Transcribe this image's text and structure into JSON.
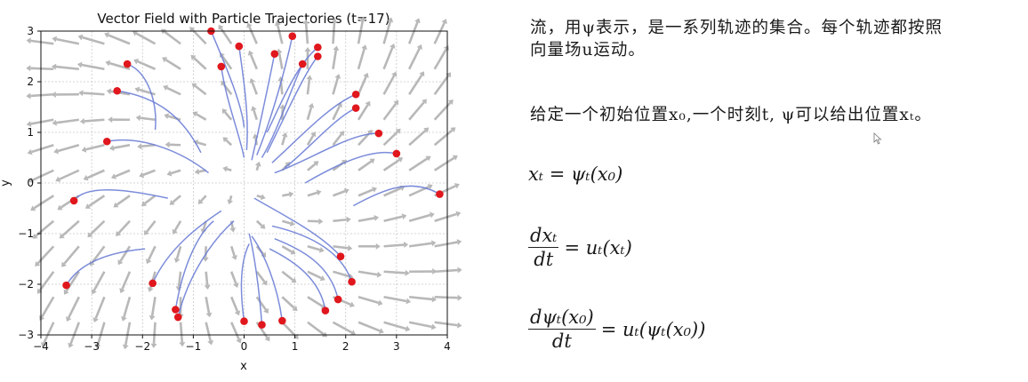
{
  "chart_data": {
    "type": "scatter",
    "title": "Vector Field with Particle Trajectories (t=17)",
    "xlabel": "x",
    "ylabel": "y",
    "xlim": [
      -4,
      4
    ],
    "ylim": [
      -3,
      3
    ],
    "xticks": [
      "−4",
      "−3",
      "−2",
      "−1",
      "0",
      "1",
      "2",
      "3",
      "4"
    ],
    "yticks": [
      "−3",
      "−2",
      "−1",
      "0",
      "1",
      "2",
      "3"
    ],
    "grid": true,
    "particles": [
      {
        "x": -2.3,
        "y": 2.35,
        "trail": [
          [
            -2.3,
            2.35
          ],
          [
            -1.9,
            2.2
          ],
          [
            -1.7,
            1.6
          ],
          [
            -1.75,
            1.05
          ]
        ]
      },
      {
        "x": -2.5,
        "y": 1.82,
        "trail": [
          [
            -2.5,
            1.82
          ],
          [
            -1.7,
            1.7
          ],
          [
            -1.2,
            1.3
          ],
          [
            -0.85,
            0.6
          ]
        ]
      },
      {
        "x": -2.7,
        "y": 0.82,
        "trail": [
          [
            -2.7,
            0.82
          ],
          [
            -2.0,
            0.95
          ],
          [
            -1.2,
            0.6
          ],
          [
            -0.7,
            0.2
          ]
        ]
      },
      {
        "x": -3.35,
        "y": -0.35,
        "trail": [
          [
            -3.35,
            -0.35
          ],
          [
            -3.1,
            0.0
          ],
          [
            -2.2,
            -0.15
          ],
          [
            -1.5,
            -0.3
          ]
        ]
      },
      {
        "x": -3.5,
        "y": -2.02,
        "trail": [
          [
            -3.5,
            -2.02
          ],
          [
            -3.2,
            -1.5
          ],
          [
            -2.5,
            -1.35
          ],
          [
            -1.95,
            -1.3
          ]
        ]
      },
      {
        "x": -1.8,
        "y": -1.98,
        "trail": [
          [
            -1.8,
            -1.98
          ],
          [
            -1.5,
            -1.3
          ],
          [
            -0.9,
            -0.85
          ],
          [
            -0.45,
            -0.55
          ]
        ]
      },
      {
        "x": -1.35,
        "y": -2.5,
        "trail": [
          [
            -1.35,
            -2.5
          ],
          [
            -1.2,
            -1.6
          ],
          [
            -0.9,
            -1.0
          ],
          [
            -0.6,
            -0.75
          ]
        ]
      },
      {
        "x": -1.3,
        "y": -2.65,
        "trail": [
          [
            -1.3,
            -2.65
          ],
          [
            -1.1,
            -1.8
          ],
          [
            -0.6,
            -1.1
          ],
          [
            -0.2,
            -0.75
          ]
        ]
      },
      {
        "x": 0.0,
        "y": -2.73,
        "trail": [
          [
            0.0,
            -2.73
          ],
          [
            -0.1,
            -2.0
          ],
          [
            -0.05,
            -1.5
          ],
          [
            0.1,
            -1.2
          ]
        ]
      },
      {
        "x": 0.35,
        "y": -2.8,
        "trail": [
          [
            0.35,
            -2.8
          ],
          [
            0.3,
            -2.1
          ],
          [
            0.2,
            -1.4
          ],
          [
            0.1,
            -1.0
          ]
        ]
      },
      {
        "x": 0.75,
        "y": -2.72,
        "trail": [
          [
            0.75,
            -2.72
          ],
          [
            0.65,
            -2.0
          ],
          [
            0.4,
            -1.4
          ],
          [
            0.15,
            -1.05
          ]
        ]
      },
      {
        "x": 1.6,
        "y": -2.52,
        "trail": [
          [
            1.6,
            -2.52
          ],
          [
            1.5,
            -1.9
          ],
          [
            1.0,
            -1.55
          ],
          [
            0.5,
            -1.3
          ]
        ]
      },
      {
        "x": 1.85,
        "y": -2.3,
        "trail": [
          [
            1.85,
            -2.3
          ],
          [
            1.7,
            -1.6
          ],
          [
            1.1,
            -1.3
          ],
          [
            0.6,
            -1.1
          ]
        ]
      },
      {
        "x": 2.12,
        "y": -1.95,
        "trail": [
          [
            2.12,
            -1.95
          ],
          [
            1.9,
            -1.3
          ],
          [
            1.2,
            -1.0
          ],
          [
            0.55,
            -0.85
          ]
        ]
      },
      {
        "x": 1.9,
        "y": -1.45,
        "trail": [
          [
            1.9,
            -1.45
          ],
          [
            1.5,
            -1.0
          ],
          [
            0.8,
            -0.65
          ],
          [
            0.2,
            -0.3
          ]
        ]
      },
      {
        "x": 3.85,
        "y": -0.22,
        "trail": [
          [
            3.85,
            -0.22
          ],
          [
            3.3,
            0.1
          ],
          [
            2.8,
            -0.1
          ],
          [
            2.15,
            -0.45
          ]
        ]
      },
      {
        "x": 3.0,
        "y": 0.58,
        "trail": [
          [
            3.0,
            0.58
          ],
          [
            2.5,
            0.7
          ],
          [
            1.8,
            0.35
          ],
          [
            1.2,
            0.0
          ]
        ]
      },
      {
        "x": 2.65,
        "y": 0.98,
        "trail": [
          [
            2.65,
            0.98
          ],
          [
            2.1,
            1.0
          ],
          [
            1.3,
            0.45
          ],
          [
            0.6,
            0.2
          ]
        ]
      },
      {
        "x": 2.2,
        "y": 1.48,
        "trail": [
          [
            2.2,
            1.48
          ],
          [
            1.8,
            1.3
          ],
          [
            1.2,
            0.6
          ],
          [
            0.8,
            0.3
          ]
        ]
      },
      {
        "x": 2.2,
        "y": 1.75,
        "trail": [
          [
            2.2,
            1.75
          ],
          [
            1.7,
            1.55
          ],
          [
            1.1,
            0.9
          ],
          [
            0.55,
            0.4
          ]
        ]
      },
      {
        "x": 1.45,
        "y": 2.5,
        "trail": [
          [
            1.45,
            2.5
          ],
          [
            1.2,
            2.2
          ],
          [
            0.8,
            1.3
          ],
          [
            0.45,
            0.6
          ]
        ]
      },
      {
        "x": 1.45,
        "y": 2.68,
        "trail": [
          [
            1.45,
            2.68
          ],
          [
            1.0,
            2.3
          ],
          [
            0.7,
            1.5
          ],
          [
            0.45,
            1.0
          ]
        ]
      },
      {
        "x": 1.15,
        "y": 2.35,
        "trail": [
          [
            1.15,
            2.35
          ],
          [
            0.9,
            1.8
          ],
          [
            0.65,
            1.0
          ],
          [
            0.35,
            0.5
          ]
        ]
      },
      {
        "x": 0.95,
        "y": 2.9,
        "trail": [
          [
            0.95,
            2.9
          ],
          [
            0.8,
            2.2
          ],
          [
            0.55,
            1.3
          ],
          [
            0.25,
            0.55
          ]
        ]
      },
      {
        "x": 0.6,
        "y": 2.55,
        "trail": [
          [
            0.6,
            2.55
          ],
          [
            0.45,
            1.8
          ],
          [
            0.3,
            1.1
          ],
          [
            0.15,
            0.45
          ]
        ]
      },
      {
        "x": -0.1,
        "y": 2.7,
        "trail": [
          [
            -0.1,
            2.7
          ],
          [
            0.0,
            2.0
          ],
          [
            0.1,
            1.3
          ],
          [
            0.05,
            0.65
          ]
        ]
      },
      {
        "x": -0.45,
        "y": 2.3,
        "trail": [
          [
            -0.45,
            2.3
          ],
          [
            -0.35,
            1.6
          ],
          [
            -0.1,
            1.0
          ],
          [
            0.0,
            0.5
          ]
        ]
      },
      {
        "x": -0.65,
        "y": 3.0,
        "trail": [
          [
            -0.65,
            3.0
          ],
          [
            -0.4,
            2.4
          ],
          [
            -0.05,
            1.6
          ],
          [
            0.0,
            1.1
          ]
        ]
      }
    ]
  },
  "notes": {
    "para1_line1": "流，用ψ表示，是一系列轨迹的集合。每个轨迹都按照",
    "para1_line2": "向量场u运动。",
    "para2": "给定一个初始位置x₀,一个时刻t, ψ可以给出位置xₜ。",
    "eq1": "xₜ = ψₜ(x₀)",
    "eq2_num": "dxₜ",
    "eq2_den": "dt",
    "eq2_rhs": "= uₜ(xₜ)",
    "eq3_num": "dψₜ(x₀)",
    "eq3_den": "dt",
    "eq3_rhs": "= uₜ(ψₜ(x₀))"
  },
  "colors": {
    "trajectory": "#6e7fd6",
    "particle": "#e0171d",
    "arrow": "#b8b8b8",
    "grid": "#c8c8c8"
  }
}
